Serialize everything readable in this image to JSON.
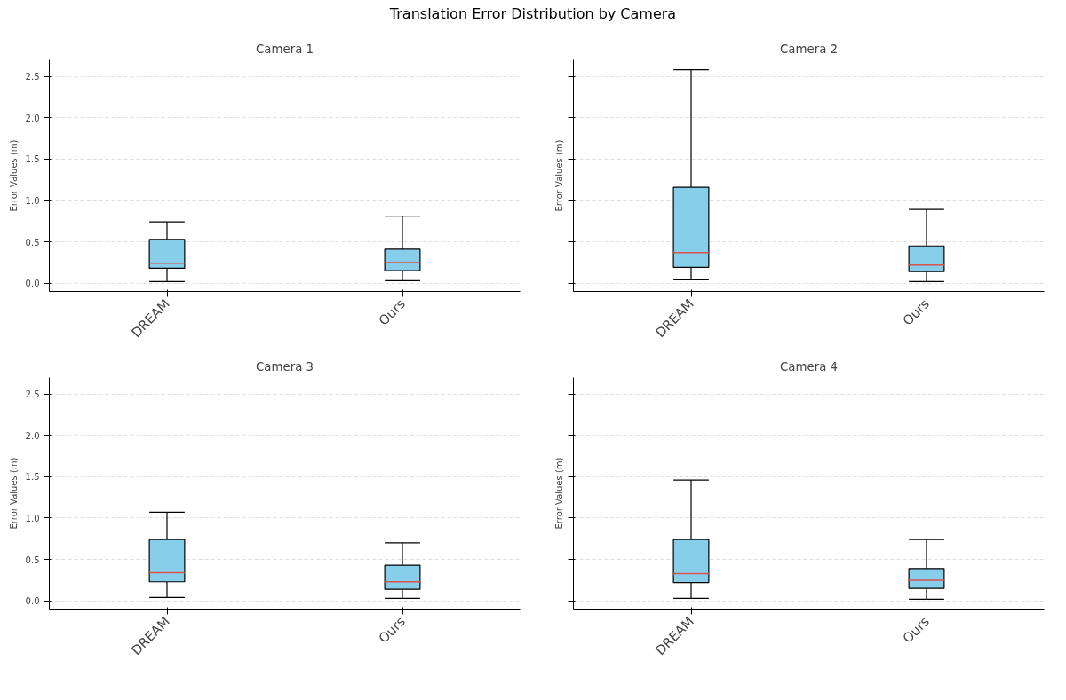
{
  "chart_data": [
    {
      "type": "box",
      "title": "Camera 1",
      "ylabel": "Error Values (m)",
      "annotations": [
        "Translation Error Distribution by Camera"
      ],
      "categories": [
        "DREAM",
        "Ours"
      ],
      "ylim": [
        -0.1,
        2.7
      ],
      "yticks": [
        {
          "value": 0,
          "label": "0.0"
        },
        0.5,
        {
          "value": 1,
          "label": "1.0"
        },
        1.5,
        {
          "value": 2,
          "label": "2.0"
        },
        2.5
      ],
      "grid": "y",
      "series": [
        {
          "color": "#87ceeb",
          "boxes": [
            {
              "low": 0.02,
              "q1": 0.18,
              "median": 0.24,
              "q3": 0.53,
              "high": 0.74
            },
            {
              "low": 0.03,
              "q1": 0.15,
              "median": 0.25,
              "q3": 0.41,
              "high": 0.81
            }
          ]
        }
      ]
    },
    {
      "type": "box",
      "title": "Camera 2",
      "ylabel": "Error Values (m)",
      "categories": [
        "DREAM",
        "Ours"
      ],
      "ylim": [
        -0.1,
        2.7
      ],
      "yticks": [
        0.0,
        0.5,
        1.0,
        1.5,
        2.0,
        2.5
      ],
      "grid": "y",
      "tick_labels": "x",
      "series": [
        {
          "color": "#87ceeb",
          "boxes": [
            {
              "low": 0.04,
              "q1": 0.19,
              "median": 0.37,
              "q3": 1.16,
              "high": 2.58
            },
            {
              "low": 0.02,
              "q1": 0.14,
              "median": 0.22,
              "q3": 0.45,
              "high": 0.89
            }
          ]
        }
      ]
    },
    {
      "type": "box",
      "title": "Camera 3",
      "ylabel": "Error Values (m)",
      "categories": [
        "DREAM",
        "Ours"
      ],
      "ylim": [
        -0.1,
        2.7
      ],
      "yticks": [
        {
          "value": 0,
          "label": "0.0"
        },
        0.5,
        {
          "value": 1,
          "label": "1.0"
        },
        1.5,
        {
          "value": 2,
          "label": "2.0"
        },
        2.5
      ],
      "grid": "y",
      "series": [
        {
          "color": "#87ceeb",
          "boxes": [
            {
              "low": 0.04,
              "q1": 0.23,
              "median": 0.34,
              "q3": 0.74,
              "high": 1.07
            },
            {
              "low": 0.03,
              "q1": 0.14,
              "median": 0.23,
              "q3": 0.43,
              "high": 0.7
            }
          ]
        }
      ]
    },
    {
      "type": "box",
      "title": "Camera 4",
      "ylabel": "Error Values (m)",
      "categories": [
        "DREAM",
        "Ours"
      ],
      "ylim": [
        -0.1,
        2.7
      ],
      "yticks": [
        0.0,
        0.5,
        1.0,
        1.5,
        2.0,
        2.5
      ],
      "grid": "y",
      "tick_labels": "x",
      "series": [
        {
          "color": "#87ceeb",
          "boxes": [
            {
              "low": 0.03,
              "q1": 0.22,
              "median": 0.33,
              "q3": 0.74,
              "high": 1.46
            },
            {
              "low": 0.02,
              "q1": 0.15,
              "median": 0.25,
              "q3": 0.39,
              "high": 0.74
            }
          ]
        }
      ]
    }
  ]
}
